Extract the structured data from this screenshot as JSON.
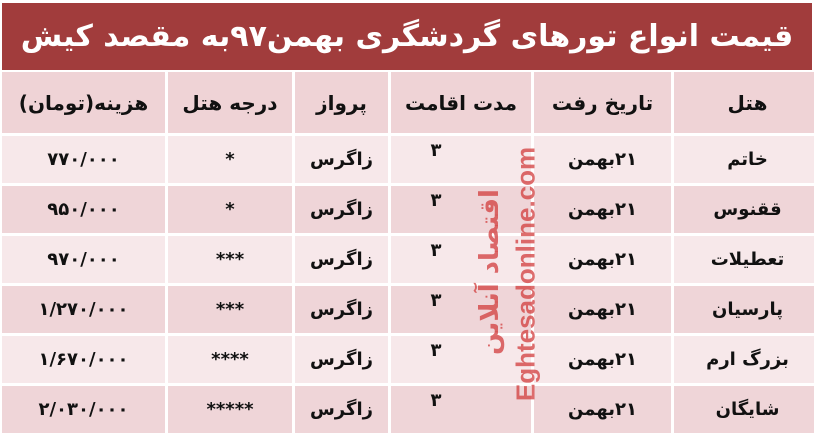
{
  "title": "قیمت انواع تورهای گردشگری بهمن۹۷به مقصد کیش",
  "colors": {
    "title_bg": "#a13c3c",
    "header_bg": "#efd3d6",
    "row_light": "#f7e8ea",
    "row_dark": "#efd5d8"
  },
  "columns": [
    "هتل",
    "تاریخ رفت",
    "مدت اقامت",
    "پرواز",
    "درجه هتل",
    "هزینه(تومان)"
  ],
  "rows": [
    [
      "خاتم",
      "۲۱بهمن",
      "۳",
      "زاگرس",
      "*",
      "۷۷۰/۰۰۰"
    ],
    [
      "ققنوس",
      "۲۱بهمن",
      "۳",
      "زاگرس",
      "*",
      "۹۵۰/۰۰۰"
    ],
    [
      "تعطیلات",
      "۲۱بهمن",
      "۳",
      "زاگرس",
      "***",
      "۹۷۰/۰۰۰"
    ],
    [
      "پارسیان",
      "۲۱بهمن",
      "۳",
      "زاگرس",
      "***",
      "۱/۲۷۰/۰۰۰"
    ],
    [
      "بزرگ ارم",
      "۲۱بهمن",
      "۳",
      "زاگرس",
      "****",
      "۱/۶۷۰/۰۰۰"
    ],
    [
      "شایگان",
      "۲۱بهمن",
      "۳",
      "زاگرس",
      "*****",
      "۲/۰۳۰/۰۰۰"
    ]
  ],
  "watermark": {
    "fa": "اقتصاد آنلاین",
    "en": "Eghtesadonline.com"
  }
}
